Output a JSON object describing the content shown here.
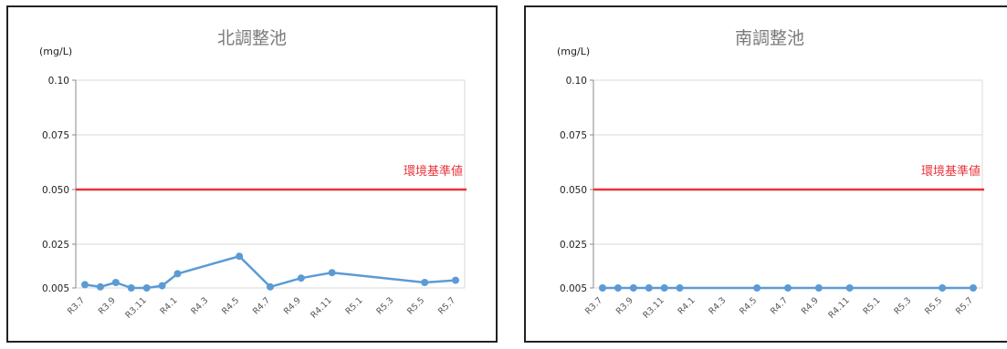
{
  "chart_data": [
    {
      "type": "line",
      "title": "北調整池",
      "unit_label": "(mg/L)",
      "y_ticks": [
        "0.10",
        "0.075",
        "0.050",
        "0.025",
        "0.005"
      ],
      "ylim": [
        0.005,
        0.1
      ],
      "x_labels": [
        "R3.7",
        "R3.9",
        "R3.11",
        "R4.1",
        "R4.3",
        "R4.5",
        "R4.7",
        "R4.9",
        "R4.11",
        "R5.1",
        "R5.3",
        "R5.5",
        "R5.7"
      ],
      "series": [
        {
          "color": "#5b9bd5",
          "points": [
            {
              "x": "R3.7",
              "y": 0.0065
            },
            {
              "x": "R3.8",
              "y": 0.0055
            },
            {
              "x": "R3.9",
              "y": 0.0075
            },
            {
              "x": "R3.10",
              "y": 0.005
            },
            {
              "x": "R3.11",
              "y": 0.005
            },
            {
              "x": "R3.12",
              "y": 0.006
            },
            {
              "x": "R4.1",
              "y": 0.0115
            },
            {
              "x": "R4.5",
              "y": 0.0195
            },
            {
              "x": "R4.7",
              "y": 0.0055
            },
            {
              "x": "R4.9",
              "y": 0.0095
            },
            {
              "x": "R4.11",
              "y": 0.012
            },
            {
              "x": "R5.5",
              "y": 0.0075
            },
            {
              "x": "R5.7",
              "y": 0.0085
            }
          ]
        }
      ],
      "reference_line": {
        "label": "環境基準値",
        "value": 0.05,
        "color": "#e8343a"
      },
      "grid": true
    },
    {
      "type": "line",
      "title": "南調整池",
      "unit_label": "(mg/L)",
      "y_ticks": [
        "0.10",
        "0.075",
        "0.050",
        "0.025",
        "0.005"
      ],
      "ylim": [
        0.005,
        0.1
      ],
      "x_labels": [
        "R3.7",
        "R3.9",
        "R3.11",
        "R4.1",
        "R4.3",
        "R4.5",
        "R4.7",
        "R4.9",
        "R4.11",
        "R5.1",
        "R5.3",
        "R5.5",
        "R5.7"
      ],
      "series": [
        {
          "color": "#5b9bd5",
          "points": [
            {
              "x": "R3.7",
              "y": 0.005
            },
            {
              "x": "R3.8",
              "y": 0.005
            },
            {
              "x": "R3.9",
              "y": 0.005
            },
            {
              "x": "R3.10",
              "y": 0.005
            },
            {
              "x": "R3.11",
              "y": 0.005
            },
            {
              "x": "R3.12",
              "y": 0.005
            },
            {
              "x": "R4.5",
              "y": 0.005
            },
            {
              "x": "R4.7",
              "y": 0.005
            },
            {
              "x": "R4.9",
              "y": 0.005
            },
            {
              "x": "R4.11",
              "y": 0.005
            },
            {
              "x": "R5.5",
              "y": 0.005
            },
            {
              "x": "R5.7",
              "y": 0.005
            }
          ]
        }
      ],
      "reference_line": {
        "label": "環境基準値",
        "value": 0.05,
        "color": "#e8343a"
      },
      "grid": true
    }
  ]
}
